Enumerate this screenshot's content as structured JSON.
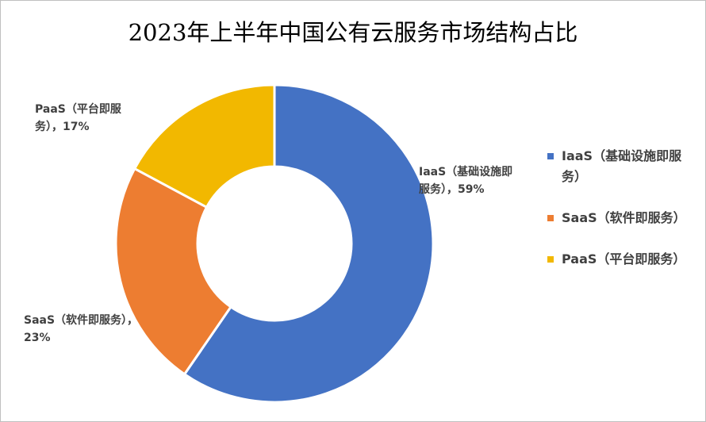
{
  "chart_data": {
    "type": "pie",
    "variant": "donut",
    "title": "2023年上半年中国公有云服务市场结构占比",
    "categories": [
      "IaaS（基础设施即服务）",
      "SaaS（软件即服务）",
      "PaaS（平台即服务）"
    ],
    "values": [
      59,
      23,
      17
    ],
    "unit": "%",
    "data_labels": [
      "IaaS（基础设施即服务），59%",
      "SaaS（软件即服务），23%",
      "PaaS（平台即服务），17%"
    ],
    "colors": [
      "#4472c4",
      "#ed7d31",
      "#f2b800"
    ],
    "legend_position": "right"
  }
}
